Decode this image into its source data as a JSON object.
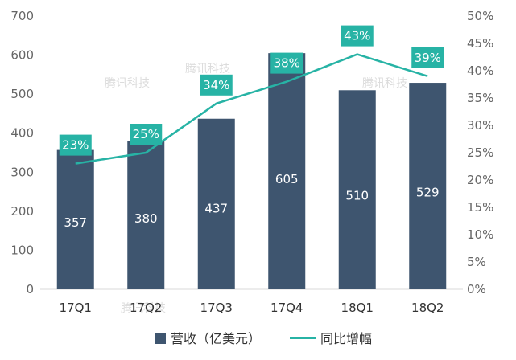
{
  "chart_data": {
    "type": "bar",
    "categories": [
      "17Q1",
      "17Q2",
      "17Q3",
      "17Q4",
      "18Q1",
      "18Q2"
    ],
    "series": [
      {
        "name": "营收（亿美元）",
        "type": "bar",
        "axis": "left",
        "values": [
          357,
          380,
          437,
          605,
          510,
          529
        ],
        "color": "#3e556f"
      },
      {
        "name": "同比增幅",
        "type": "line",
        "axis": "right",
        "values": [
          23,
          25,
          34,
          38,
          43,
          39
        ],
        "labels": [
          "23%",
          "25%",
          "34%",
          "38%",
          "43%",
          "39%"
        ],
        "color": "#27b3a5"
      }
    ],
    "y_left": {
      "min": 0,
      "max": 700,
      "ticks": [
        "0",
        "100",
        "200",
        "300",
        "400",
        "500",
        "600",
        "700"
      ]
    },
    "y_right": {
      "min": 0,
      "max": 50,
      "ticks": [
        "0%",
        "5%",
        "10%",
        "15%",
        "20%",
        "25%",
        "30%",
        "35%",
        "40%",
        "45%",
        "50%"
      ]
    },
    "grid": false,
    "legend_position": "bottom",
    "watermark": "腾讯科技"
  }
}
